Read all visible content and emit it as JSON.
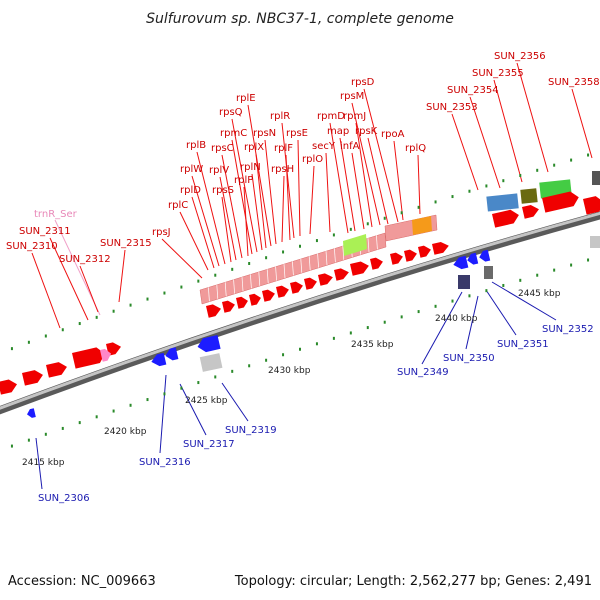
{
  "title": "Sulfurovum sp. NBC37-1, complete genome",
  "footer": {
    "accession": "Accession: NC_009663",
    "summary": "Topology: circular; Length: 2,562,277 bp; Genes: 2,491"
  },
  "scale_labels": [
    "2415 kbp",
    "2420 kbp",
    "2425 kbp",
    "2430 kbp",
    "2435 kbp",
    "2440 kbp",
    "2445 kbp"
  ],
  "forward_labels": [
    "trnR_Ser",
    "SUN_2311",
    "SUN_2310",
    "SUN_2312",
    "SUN_2315",
    "rpsJ",
    "rplC",
    "rplD",
    "rplW",
    "rplB",
    "rpsS",
    "rplV",
    "rpsC",
    "rplP",
    "rpmC",
    "rpsQ",
    "rplN",
    "rplX",
    "rplE",
    "rpsN",
    "rpsH",
    "rplF",
    "rplR",
    "rpsE",
    "rpmD",
    "rplO",
    "secY",
    "map",
    "infA",
    "rpmJ",
    "rpsM",
    "rpsK",
    "rpsD",
    "rpoA",
    "rplQ",
    "SUN_2353",
    "SUN_2354",
    "SUN_2355",
    "SUN_2356",
    "SUN_2358"
  ],
  "reverse_labels": [
    "SUN_2306",
    "SUN_2316",
    "SUN_2317",
    "SUN_2319",
    "SUN_2349",
    "SUN_2350",
    "SUN_2351",
    "SUN_2352"
  ],
  "colors": {
    "forward_gene": "#f00000",
    "reverse_gene": "#1c1cff",
    "trna": "#ff88c8",
    "scale_tick": "#2a8a2a",
    "backbone": "#8c8c8c",
    "ribosomal_cluster": "#f09a9a",
    "highlight_green": "#aaf055",
    "highlight_orange": "#f59a1a"
  }
}
